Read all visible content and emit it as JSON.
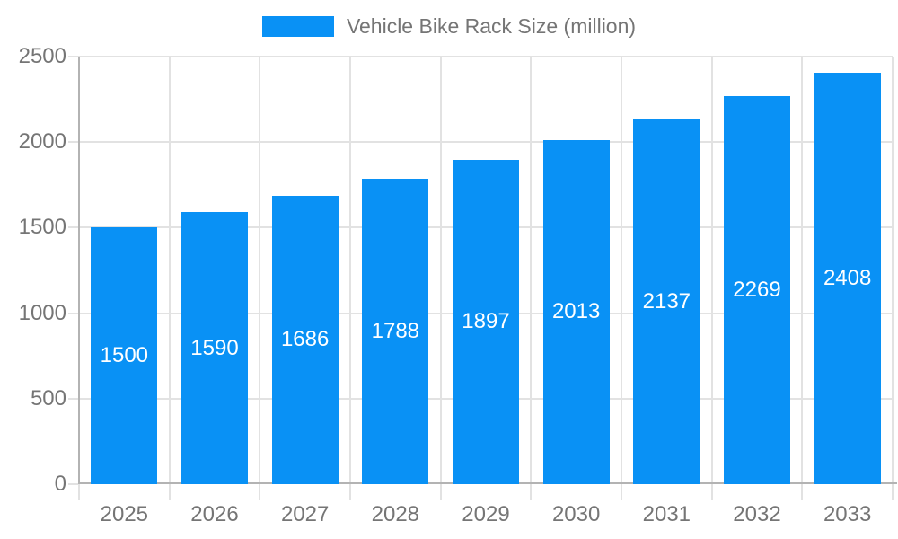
{
  "chart_data": {
    "type": "bar",
    "title": "Vehicle Bike Rack Size (million)",
    "categories": [
      "2025",
      "2026",
      "2027",
      "2028",
      "2029",
      "2030",
      "2031",
      "2032",
      "2033"
    ],
    "values": [
      1500,
      1590,
      1686,
      1788,
      1897,
      2013,
      2137,
      2269,
      2408
    ],
    "series_name": "Vehicle Bike Rack Size (million)",
    "xlabel": "",
    "ylabel": "",
    "ylim": [
      0,
      2500
    ],
    "ytick_step": 500,
    "ytick_labels": [
      "0",
      "500",
      "1000",
      "1500",
      "2000",
      "2500"
    ],
    "grid": true,
    "legend_position": "top-center",
    "bar_labels_shown": true,
    "bar_color": "#0991f5",
    "bar_label_color": "#ffffff",
    "axis_text_color": "#757575",
    "grid_color": "#e2e2e2",
    "axis_line_color": "#b3b3b3",
    "background_color": "#ffffff"
  }
}
